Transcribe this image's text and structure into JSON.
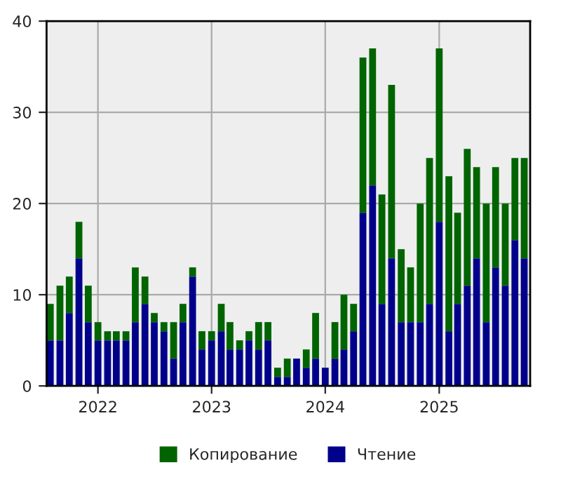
{
  "chart_data": {
    "type": "bar",
    "stacked": true,
    "x": [
      "2021-08",
      "2021-09",
      "2021-10",
      "2021-11",
      "2021-12",
      "2022-01",
      "2022-02",
      "2022-03",
      "2022-04",
      "2022-05",
      "2022-06",
      "2022-07",
      "2022-08",
      "2022-09",
      "2022-10",
      "2022-11",
      "2022-12",
      "2023-01",
      "2023-02",
      "2023-03",
      "2023-04",
      "2023-05",
      "2023-06",
      "2023-07",
      "2023-08",
      "2023-09",
      "2023-10",
      "2023-11",
      "2023-12",
      "2024-01",
      "2024-02",
      "2024-03",
      "2024-04",
      "2024-05",
      "2024-06",
      "2024-07",
      "2024-08",
      "2024-09",
      "2024-10",
      "2024-11",
      "2024-12",
      "2025-01",
      "2025-02",
      "2025-03",
      "2025-04",
      "2025-05",
      "2025-06",
      "2025-07",
      "2025-08",
      "2025-09",
      "2025-10"
    ],
    "series": [
      {
        "name": "Чтение",
        "color": "#00008b",
        "values": [
          5,
          5,
          8,
          14,
          7,
          5,
          5,
          5,
          5,
          7,
          9,
          7,
          6,
          3,
          7,
          12,
          4,
          5,
          6,
          4,
          4,
          5,
          4,
          5,
          1,
          1,
          3,
          2,
          3,
          2,
          3,
          4,
          6,
          19,
          22,
          9,
          14,
          7,
          7,
          7,
          9,
          18,
          6,
          9,
          11,
          14,
          7,
          13,
          11,
          16,
          14
        ]
      },
      {
        "name": "Копирование",
        "color": "#006400",
        "values": [
          4,
          6,
          4,
          4,
          4,
          2,
          1,
          1,
          1,
          6,
          3,
          1,
          1,
          4,
          2,
          1,
          2,
          1,
          3,
          3,
          1,
          1,
          3,
          2,
          1,
          2,
          0,
          2,
          5,
          0,
          4,
          6,
          3,
          17,
          15,
          12,
          19,
          8,
          6,
          13,
          16,
          19,
          17,
          10,
          15,
          10,
          13,
          11,
          9,
          9,
          11
        ]
      }
    ],
    "xlim": [
      "2021-07-20",
      "2025-10-20"
    ],
    "xticks": [
      {
        "value": "2022-01",
        "label": "2022"
      },
      {
        "value": "2023-01",
        "label": "2023"
      },
      {
        "value": "2024-01",
        "label": "2024"
      },
      {
        "value": "2025-01",
        "label": "2025"
      }
    ],
    "ylim": [
      0,
      40
    ],
    "yticks": [
      0,
      10,
      20,
      30,
      40
    ],
    "grid": true,
    "legend": "bottom"
  }
}
